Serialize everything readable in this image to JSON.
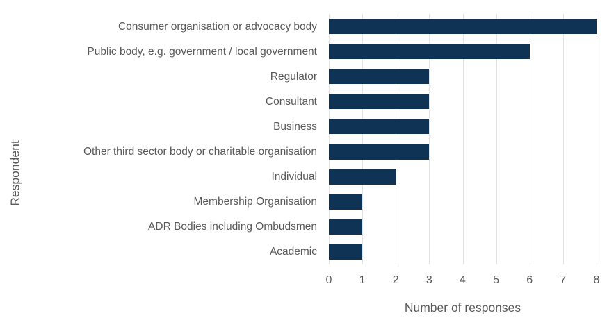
{
  "chart_data": {
    "type": "bar",
    "orientation": "horizontal",
    "title": "",
    "xlabel": "Number of responses",
    "ylabel": "Respondent",
    "categories": [
      "Consumer organisation or advocacy body",
      "Public body, e.g. government / local government",
      "Regulator",
      "Consultant",
      "Business",
      "Other third sector body or charitable organisation",
      "Individual",
      "Membership Organisation",
      "ADR Bodies including Ombudsmen",
      "Academic"
    ],
    "values": [
      8,
      6,
      3,
      3,
      3,
      3,
      2,
      1,
      1,
      1
    ],
    "xlim": [
      0,
      8
    ],
    "xticks": [
      0,
      1,
      2,
      3,
      4,
      5,
      6,
      7,
      8
    ],
    "grid": "vertical",
    "legend": "none",
    "colors": {
      "bar": "#0e3355",
      "gridline": "#e3e3e3",
      "text": "#595959",
      "background": "#ffffff"
    }
  }
}
